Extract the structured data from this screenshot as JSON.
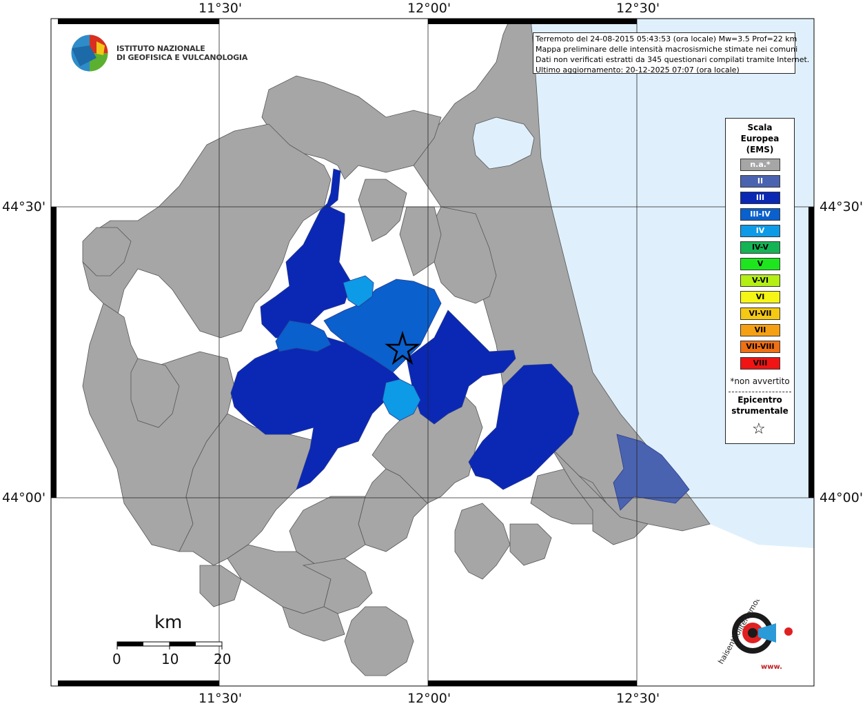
{
  "map": {
    "lon_ticks_top": [
      "11°30'",
      "12°00'",
      "12°30'"
    ],
    "lon_ticks_bottom": [
      "11°30'",
      "12°00'",
      "12°30'"
    ],
    "lat_ticks_left": [
      "44°30'",
      "44°00'"
    ],
    "lat_ticks_right": [
      "44°30'",
      "44°00'"
    ]
  },
  "info": {
    "line1": "Terremoto del 24-08-2015 05:43:53 (ora locale) Mw=3.5 Prof=22 km",
    "line2": "Mappa preliminare delle intensità macrosismiche stimate nei comuni",
    "line3": "Dati non verificati estratti da 345 questionari compilati tramite Internet.",
    "line4": "Ultimo aggiornamento: 20-12-2025 07:07 (ora locale)"
  },
  "logo": {
    "line1": "ISTITUTO NAZIONALE",
    "line2": "DI GEOFISICA E VULCANOLOGIA"
  },
  "legend": {
    "title1": "Scala",
    "title2": "Europea",
    "title3": "(EMS)",
    "items": [
      {
        "label": "n.a.*",
        "color": "#a6a6a6"
      },
      {
        "label": "II",
        "color": "#4a63b0"
      },
      {
        "label": "III",
        "color": "#0a28b4"
      },
      {
        "label": "III-IV",
        "color": "#0a60cc"
      },
      {
        "label": "IV",
        "color": "#0d9ae6"
      },
      {
        "label": "IV-V",
        "color": "#14b454"
      },
      {
        "label": "V",
        "color": "#1ee61e"
      },
      {
        "label": "V-VI",
        "color": "#b4f014"
      },
      {
        "label": "VI",
        "color": "#f5f516"
      },
      {
        "label": "VI-VII",
        "color": "#f5c814"
      },
      {
        "label": "VII",
        "color": "#f5a014"
      },
      {
        "label": "VII-VIII",
        "color": "#f07014"
      },
      {
        "label": "VIII",
        "color": "#f01414"
      }
    ],
    "note": "*non avvertito",
    "epi1": "Epicentro",
    "epi2": "strumentale",
    "star": "☆"
  },
  "scale": {
    "title": "km",
    "labels": [
      "0",
      "10",
      "20"
    ]
  },
  "haisentito": {
    "text": "haisentitoilterremoto.it",
    "url": "www."
  },
  "colors": {
    "sea": "#dff0fc",
    "land_na": "#a6a6a6",
    "border": "#555555"
  }
}
